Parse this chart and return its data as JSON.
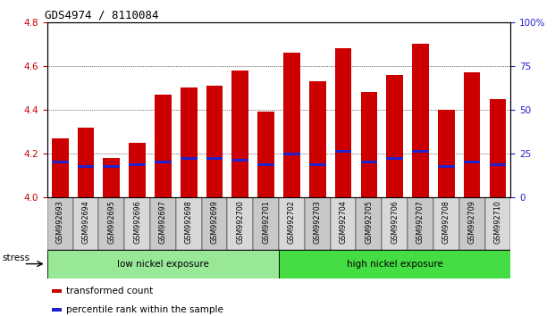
{
  "title": "GDS4974 / 8110084",
  "samples": [
    "GSM992693",
    "GSM992694",
    "GSM992695",
    "GSM992696",
    "GSM992697",
    "GSM992698",
    "GSM992699",
    "GSM992700",
    "GSM992701",
    "GSM992702",
    "GSM992703",
    "GSM992704",
    "GSM992705",
    "GSM992706",
    "GSM992707",
    "GSM992708",
    "GSM992709",
    "GSM992710"
  ],
  "red_values": [
    4.27,
    4.32,
    4.18,
    4.25,
    4.47,
    4.5,
    4.51,
    4.58,
    4.39,
    4.66,
    4.53,
    4.68,
    4.48,
    4.56,
    4.7,
    4.4,
    4.57,
    4.45
  ],
  "blue_values": [
    4.16,
    4.14,
    4.14,
    4.15,
    4.16,
    4.18,
    4.18,
    4.17,
    4.15,
    4.2,
    4.15,
    4.21,
    4.16,
    4.18,
    4.21,
    4.14,
    4.16,
    4.15
  ],
  "ymin": 4.0,
  "ymax": 4.8,
  "yticks_left": [
    4.0,
    4.2,
    4.4,
    4.6,
    4.8
  ],
  "yticks_right_vals": [
    0,
    25,
    50,
    75,
    100
  ],
  "yticks_right_labels": [
    "0",
    "25",
    "50",
    "75",
    "100%"
  ],
  "groups": [
    {
      "label": "low nickel exposure",
      "start": 0,
      "end": 9,
      "color": "#98E898"
    },
    {
      "label": "high nickel exposure",
      "start": 9,
      "end": 18,
      "color": "#44DD44"
    }
  ],
  "stress_label": "stress",
  "bar_color_red": "#CC0000",
  "bar_color_blue": "#2222CC",
  "bar_width": 0.65,
  "background_color": "#FFFFFF",
  "tick_color_left": "#CC0000",
  "tick_color_right": "#2222CC",
  "legend_items": [
    {
      "color": "#CC0000",
      "label": "transformed count"
    },
    {
      "color": "#2222CC",
      "label": "percentile rank within the sample"
    }
  ],
  "grid_color": "black",
  "grid_linestyle": "dotted",
  "grid_linewidth": 0.5,
  "cell_colors": [
    "#C8C8C8",
    "#D8D8D8"
  ]
}
